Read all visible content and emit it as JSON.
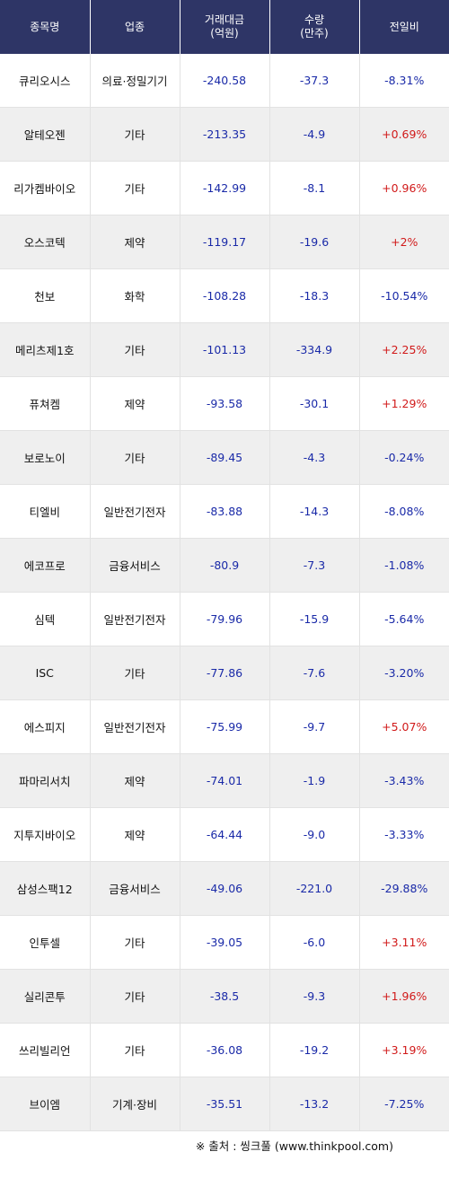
{
  "headers": {
    "name": "종목명",
    "sector": "업종",
    "amount_line1": "거래대금",
    "amount_line2": "(억원)",
    "volume_line1": "수량",
    "volume_line2": "(만주)",
    "change": "전일비"
  },
  "rows": [
    {
      "name": "큐리오시스",
      "sector": "의료·정밀기기",
      "amount": "-240.58",
      "volume": "-37.3",
      "change": "-8.31%",
      "dir": "down"
    },
    {
      "name": "알테오젠",
      "sector": "기타",
      "amount": "-213.35",
      "volume": "-4.9",
      "change": "+0.69%",
      "dir": "up"
    },
    {
      "name": "리가켐바이오",
      "sector": "기타",
      "amount": "-142.99",
      "volume": "-8.1",
      "change": "+0.96%",
      "dir": "up"
    },
    {
      "name": "오스코텍",
      "sector": "제약",
      "amount": "-119.17",
      "volume": "-19.6",
      "change": "+2%",
      "dir": "up"
    },
    {
      "name": "천보",
      "sector": "화학",
      "amount": "-108.28",
      "volume": "-18.3",
      "change": "-10.54%",
      "dir": "down"
    },
    {
      "name": "메리츠제1호",
      "sector": "기타",
      "amount": "-101.13",
      "volume": "-334.9",
      "change": "+2.25%",
      "dir": "up"
    },
    {
      "name": "퓨쳐켐",
      "sector": "제약",
      "amount": "-93.58",
      "volume": "-30.1",
      "change": "+1.29%",
      "dir": "up"
    },
    {
      "name": "보로노이",
      "sector": "기타",
      "amount": "-89.45",
      "volume": "-4.3",
      "change": "-0.24%",
      "dir": "down"
    },
    {
      "name": "티엘비",
      "sector": "일반전기전자",
      "amount": "-83.88",
      "volume": "-14.3",
      "change": "-8.08%",
      "dir": "down"
    },
    {
      "name": "에코프로",
      "sector": "금융서비스",
      "amount": "-80.9",
      "volume": "-7.3",
      "change": "-1.08%",
      "dir": "down"
    },
    {
      "name": "심텍",
      "sector": "일반전기전자",
      "amount": "-79.96",
      "volume": "-15.9",
      "change": "-5.64%",
      "dir": "down"
    },
    {
      "name": "ISC",
      "sector": "기타",
      "amount": "-77.86",
      "volume": "-7.6",
      "change": "-3.20%",
      "dir": "down"
    },
    {
      "name": "에스피지",
      "sector": "일반전기전자",
      "amount": "-75.99",
      "volume": "-9.7",
      "change": "+5.07%",
      "dir": "up"
    },
    {
      "name": "파마리서치",
      "sector": "제약",
      "amount": "-74.01",
      "volume": "-1.9",
      "change": "-3.43%",
      "dir": "down"
    },
    {
      "name": "지투지바이오",
      "sector": "제약",
      "amount": "-64.44",
      "volume": "-9.0",
      "change": "-3.33%",
      "dir": "down"
    },
    {
      "name": "삼성스팩12",
      "sector": "금융서비스",
      "amount": "-49.06",
      "volume": "-221.0",
      "change": "-29.88%",
      "dir": "down"
    },
    {
      "name": "인투셀",
      "sector": "기타",
      "amount": "-39.05",
      "volume": "-6.0",
      "change": "+3.11%",
      "dir": "up"
    },
    {
      "name": "실리콘투",
      "sector": "기타",
      "amount": "-38.5",
      "volume": "-9.3",
      "change": "+1.96%",
      "dir": "up"
    },
    {
      "name": "쓰리빌리언",
      "sector": "기타",
      "amount": "-36.08",
      "volume": "-19.2",
      "change": "+3.19%",
      "dir": "up"
    },
    {
      "name": "브이엠",
      "sector": "기계·장비",
      "amount": "-35.51",
      "volume": "-13.2",
      "change": "-7.25%",
      "dir": "down"
    }
  ],
  "source": "※ 출처 : 씽크풀 (www.thinkpool.com)",
  "colors": {
    "header_bg": "#2e3566",
    "down": "#1a2aa8",
    "up": "#d11a1a",
    "stripe": "#efefef"
  }
}
